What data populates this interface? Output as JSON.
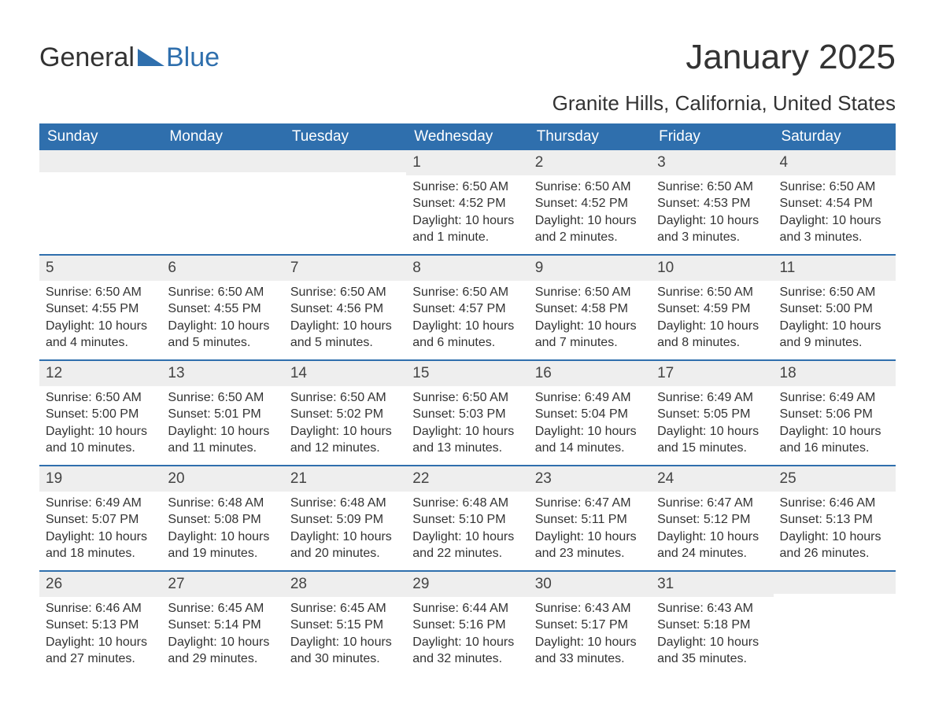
{
  "logo": {
    "general": "General",
    "blue": "Blue"
  },
  "title": "January 2025",
  "location": "Granite Hills, California, United States",
  "colors": {
    "header_bg": "#2f6fad",
    "header_text": "#ffffff",
    "daynum_bg": "#eeeeee",
    "border": "#2f6fad",
    "text": "#333333",
    "logo_blue": "#2f6fad"
  },
  "day_names": [
    "Sunday",
    "Monday",
    "Tuesday",
    "Wednesday",
    "Thursday",
    "Friday",
    "Saturday"
  ],
  "weeks": [
    [
      {
        "num": "",
        "sunrise": "",
        "sunset": "",
        "daylight1": "",
        "daylight2": ""
      },
      {
        "num": "",
        "sunrise": "",
        "sunset": "",
        "daylight1": "",
        "daylight2": ""
      },
      {
        "num": "",
        "sunrise": "",
        "sunset": "",
        "daylight1": "",
        "daylight2": ""
      },
      {
        "num": "1",
        "sunrise": "Sunrise: 6:50 AM",
        "sunset": "Sunset: 4:52 PM",
        "daylight1": "Daylight: 10 hours",
        "daylight2": "and 1 minute."
      },
      {
        "num": "2",
        "sunrise": "Sunrise: 6:50 AM",
        "sunset": "Sunset: 4:52 PM",
        "daylight1": "Daylight: 10 hours",
        "daylight2": "and 2 minutes."
      },
      {
        "num": "3",
        "sunrise": "Sunrise: 6:50 AM",
        "sunset": "Sunset: 4:53 PM",
        "daylight1": "Daylight: 10 hours",
        "daylight2": "and 3 minutes."
      },
      {
        "num": "4",
        "sunrise": "Sunrise: 6:50 AM",
        "sunset": "Sunset: 4:54 PM",
        "daylight1": "Daylight: 10 hours",
        "daylight2": "and 3 minutes."
      }
    ],
    [
      {
        "num": "5",
        "sunrise": "Sunrise: 6:50 AM",
        "sunset": "Sunset: 4:55 PM",
        "daylight1": "Daylight: 10 hours",
        "daylight2": "and 4 minutes."
      },
      {
        "num": "6",
        "sunrise": "Sunrise: 6:50 AM",
        "sunset": "Sunset: 4:55 PM",
        "daylight1": "Daylight: 10 hours",
        "daylight2": "and 5 minutes."
      },
      {
        "num": "7",
        "sunrise": "Sunrise: 6:50 AM",
        "sunset": "Sunset: 4:56 PM",
        "daylight1": "Daylight: 10 hours",
        "daylight2": "and 5 minutes."
      },
      {
        "num": "8",
        "sunrise": "Sunrise: 6:50 AM",
        "sunset": "Sunset: 4:57 PM",
        "daylight1": "Daylight: 10 hours",
        "daylight2": "and 6 minutes."
      },
      {
        "num": "9",
        "sunrise": "Sunrise: 6:50 AM",
        "sunset": "Sunset: 4:58 PM",
        "daylight1": "Daylight: 10 hours",
        "daylight2": "and 7 minutes."
      },
      {
        "num": "10",
        "sunrise": "Sunrise: 6:50 AM",
        "sunset": "Sunset: 4:59 PM",
        "daylight1": "Daylight: 10 hours",
        "daylight2": "and 8 minutes."
      },
      {
        "num": "11",
        "sunrise": "Sunrise: 6:50 AM",
        "sunset": "Sunset: 5:00 PM",
        "daylight1": "Daylight: 10 hours",
        "daylight2": "and 9 minutes."
      }
    ],
    [
      {
        "num": "12",
        "sunrise": "Sunrise: 6:50 AM",
        "sunset": "Sunset: 5:00 PM",
        "daylight1": "Daylight: 10 hours",
        "daylight2": "and 10 minutes."
      },
      {
        "num": "13",
        "sunrise": "Sunrise: 6:50 AM",
        "sunset": "Sunset: 5:01 PM",
        "daylight1": "Daylight: 10 hours",
        "daylight2": "and 11 minutes."
      },
      {
        "num": "14",
        "sunrise": "Sunrise: 6:50 AM",
        "sunset": "Sunset: 5:02 PM",
        "daylight1": "Daylight: 10 hours",
        "daylight2": "and 12 minutes."
      },
      {
        "num": "15",
        "sunrise": "Sunrise: 6:50 AM",
        "sunset": "Sunset: 5:03 PM",
        "daylight1": "Daylight: 10 hours",
        "daylight2": "and 13 minutes."
      },
      {
        "num": "16",
        "sunrise": "Sunrise: 6:49 AM",
        "sunset": "Sunset: 5:04 PM",
        "daylight1": "Daylight: 10 hours",
        "daylight2": "and 14 minutes."
      },
      {
        "num": "17",
        "sunrise": "Sunrise: 6:49 AM",
        "sunset": "Sunset: 5:05 PM",
        "daylight1": "Daylight: 10 hours",
        "daylight2": "and 15 minutes."
      },
      {
        "num": "18",
        "sunrise": "Sunrise: 6:49 AM",
        "sunset": "Sunset: 5:06 PM",
        "daylight1": "Daylight: 10 hours",
        "daylight2": "and 16 minutes."
      }
    ],
    [
      {
        "num": "19",
        "sunrise": "Sunrise: 6:49 AM",
        "sunset": "Sunset: 5:07 PM",
        "daylight1": "Daylight: 10 hours",
        "daylight2": "and 18 minutes."
      },
      {
        "num": "20",
        "sunrise": "Sunrise: 6:48 AM",
        "sunset": "Sunset: 5:08 PM",
        "daylight1": "Daylight: 10 hours",
        "daylight2": "and 19 minutes."
      },
      {
        "num": "21",
        "sunrise": "Sunrise: 6:48 AM",
        "sunset": "Sunset: 5:09 PM",
        "daylight1": "Daylight: 10 hours",
        "daylight2": "and 20 minutes."
      },
      {
        "num": "22",
        "sunrise": "Sunrise: 6:48 AM",
        "sunset": "Sunset: 5:10 PM",
        "daylight1": "Daylight: 10 hours",
        "daylight2": "and 22 minutes."
      },
      {
        "num": "23",
        "sunrise": "Sunrise: 6:47 AM",
        "sunset": "Sunset: 5:11 PM",
        "daylight1": "Daylight: 10 hours",
        "daylight2": "and 23 minutes."
      },
      {
        "num": "24",
        "sunrise": "Sunrise: 6:47 AM",
        "sunset": "Sunset: 5:12 PM",
        "daylight1": "Daylight: 10 hours",
        "daylight2": "and 24 minutes."
      },
      {
        "num": "25",
        "sunrise": "Sunrise: 6:46 AM",
        "sunset": "Sunset: 5:13 PM",
        "daylight1": "Daylight: 10 hours",
        "daylight2": "and 26 minutes."
      }
    ],
    [
      {
        "num": "26",
        "sunrise": "Sunrise: 6:46 AM",
        "sunset": "Sunset: 5:13 PM",
        "daylight1": "Daylight: 10 hours",
        "daylight2": "and 27 minutes."
      },
      {
        "num": "27",
        "sunrise": "Sunrise: 6:45 AM",
        "sunset": "Sunset: 5:14 PM",
        "daylight1": "Daylight: 10 hours",
        "daylight2": "and 29 minutes."
      },
      {
        "num": "28",
        "sunrise": "Sunrise: 6:45 AM",
        "sunset": "Sunset: 5:15 PM",
        "daylight1": "Daylight: 10 hours",
        "daylight2": "and 30 minutes."
      },
      {
        "num": "29",
        "sunrise": "Sunrise: 6:44 AM",
        "sunset": "Sunset: 5:16 PM",
        "daylight1": "Daylight: 10 hours",
        "daylight2": "and 32 minutes."
      },
      {
        "num": "30",
        "sunrise": "Sunrise: 6:43 AM",
        "sunset": "Sunset: 5:17 PM",
        "daylight1": "Daylight: 10 hours",
        "daylight2": "and 33 minutes."
      },
      {
        "num": "31",
        "sunrise": "Sunrise: 6:43 AM",
        "sunset": "Sunset: 5:18 PM",
        "daylight1": "Daylight: 10 hours",
        "daylight2": "and 35 minutes."
      },
      {
        "num": "",
        "sunrise": "",
        "sunset": "",
        "daylight1": "",
        "daylight2": ""
      }
    ]
  ]
}
